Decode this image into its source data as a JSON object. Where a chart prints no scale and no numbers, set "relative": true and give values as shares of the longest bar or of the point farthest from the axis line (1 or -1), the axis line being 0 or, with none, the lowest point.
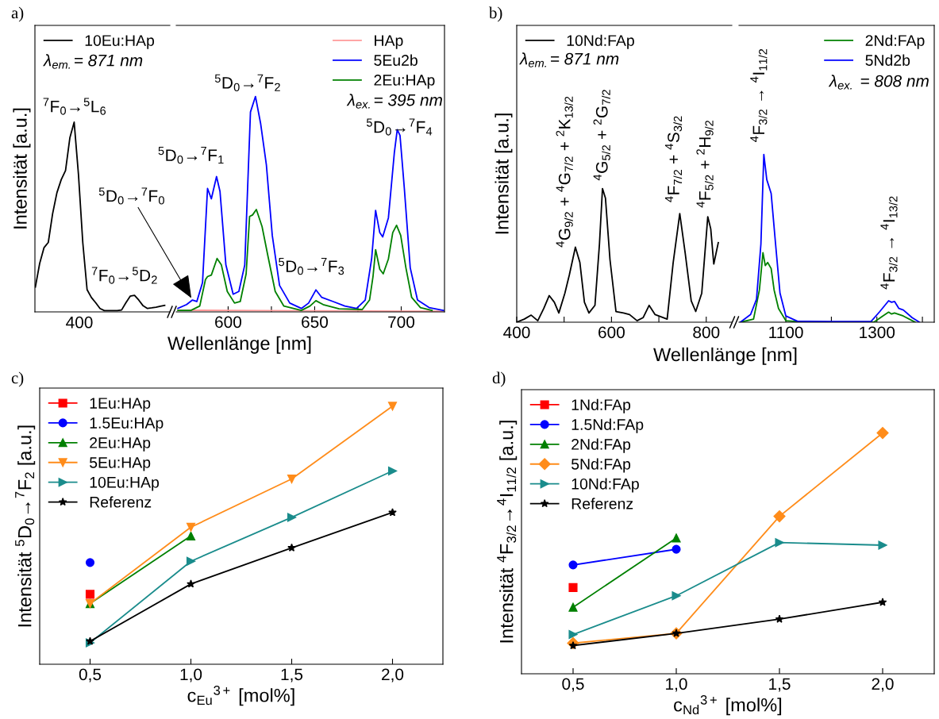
{
  "chart_data": [
    {
      "type": "line",
      "relative": true,
      "ylabel": "Intensität [a.u.]",
      "xlabel": "Wellenlänge [nm]",
      "legend": "top left",
      "grid": false,
      "categories": [
        null,
        null,
        null,
        null,
        null,
        null,
        null,
        null,
        null,
        null,
        null,
        null,
        null,
        null,
        null,
        null,
        null,
        null,
        null,
        null,
        null,
        null,
        null,
        null,
        null,
        null,
        null,
        null,
        null,
        null,
        null
      ],
      "annotations": [
        "a)",
        "λ$_{em.}$= 871 nm",
        "400",
        "$^{7}$F$_{0}$→$^{5}$L$_{6}$",
        "$^{7}$F$_{0}$→$^{5}$D$_{2}$"
      ],
      "series": [
        {
          "name": "10Eu:HAp",
          "color": "#000000",
          "values": [
            0.131,
            0.255,
            0.338,
            0.366,
            0.517,
            0.628,
            0.697,
            0.745,
            0.917,
            1.0,
            0.724,
            0.366,
            0.117,
            0.076,
            0.048,
            0.018,
            0.007,
            0.007,
            0.007,
            0.007,
            0.01,
            0.048,
            0.083,
            0.087,
            0.062,
            0.032,
            0.018,
            0.021,
            0.025,
            0.03,
            0.034
          ]
        }
      ]
    },
    {
      "type": "line",
      "relative": true,
      "xlim": [
        570,
        725
      ],
      "xticks": [
        600,
        {
          "value": 625,
          "label": null
        },
        650,
        {
          "value": 675,
          "label": null
        },
        700
      ],
      "legend": "top right",
      "grid": false,
      "annotations": [
        "λ$_{ex.}$= 395 nm",
        {
          "text": "$^{5}$D$_{0}$→$^{7}$F$_{0}$",
          "x": 579.4,
          "y": 0.055
        },
        {
          "text": "$^{5}$D$_{0}$→$^{7}$F$_{1}$",
          "x": 593.3,
          "y": 0.628
        },
        {
          "text": "$^{5}$D$_{0}$→$^{7}$F$_{2}$",
          "x": 615.8,
          "y": 1.0
        },
        {
          "text": "$^{5}$D$_{0}$→$^{7}$F$_{3}$",
          "x": 650.7,
          "y": 0.102
        },
        {
          "text": "$^{5}$D$_{0}$→$^{7}$F$_{4}$",
          "x": 697.7,
          "y": 0.846
        }
      ],
      "series": [
        {
          "name": "HAp",
          "color": "#ff9999",
          "x": [
            571,
            620,
            680,
            724
          ],
          "values": [
            0.008,
            0.006,
            0.004,
            0.003
          ]
        },
        {
          "name": "5Eu2b",
          "color": "#0000ff",
          "x": [
            571,
            576,
            579.4,
            581.9,
            585.2,
            588.1,
            590.3,
            593.3,
            595.3,
            598.7,
            602.9,
            606.2,
            609.6,
            612.9,
            615.8,
            618.8,
            622.1,
            625.5,
            629.7,
            635.6,
            642.3,
            646.5,
            650.7,
            654,
            660.7,
            667.4,
            674.2,
            679.2,
            682.9,
            685.2,
            687.6,
            689.3,
            692.6,
            696,
            697.7,
            699.3,
            701.8,
            705.2,
            709.4,
            716.1,
            724.5
          ],
          "values": [
            0.016,
            0.034,
            0.055,
            0.048,
            0.136,
            0.573,
            0.525,
            0.628,
            0.559,
            0.218,
            0.082,
            0.095,
            0.218,
            0.928,
            1.0,
            0.873,
            0.682,
            0.355,
            0.123,
            0.041,
            0.016,
            0.041,
            0.102,
            0.068,
            0.048,
            0.027,
            0.016,
            0.055,
            0.246,
            0.471,
            0.368,
            0.348,
            0.437,
            0.737,
            0.846,
            0.819,
            0.573,
            0.205,
            0.055,
            0.02,
            0.007
          ]
        },
        {
          "name": "2Eu:HAp",
          "color": "#008000",
          "x": [
            571,
            578.5,
            583.6,
            586.9,
            588.1,
            590.3,
            593.6,
            596.1,
            599.5,
            603.7,
            607,
            610.4,
            612.4,
            614.1,
            616.3,
            619.6,
            623,
            627.2,
            632.2,
            642.3,
            647.3,
            650.7,
            654.9,
            664.1,
            677.5,
            681.7,
            683.7,
            685.2,
            687.6,
            689.6,
            692.6,
            695.1,
            697.3,
            699.7,
            702.7,
            706,
            711.1,
            717.8
          ],
          "values": [
            0.007,
            0.007,
            0.027,
            0.15,
            0.164,
            0.171,
            0.248,
            0.218,
            0.095,
            0.041,
            0.048,
            0.177,
            0.443,
            0.45,
            0.475,
            0.396,
            0.259,
            0.095,
            0.027,
            0.007,
            0.027,
            0.052,
            0.034,
            0.014,
            0.011,
            0.055,
            0.164,
            0.289,
            0.198,
            0.177,
            0.246,
            0.368,
            0.402,
            0.355,
            0.205,
            0.068,
            0.02,
            0.007
          ]
        }
      ]
    },
    {
      "type": "line",
      "relative": true,
      "ylabel": "Intensität [a.u.]",
      "xlabel": "Wellenlänge [nm]",
      "xlim": [
        400,
        854
      ],
      "xticks": [
        400,
        {
          "value": 500,
          "label": null
        },
        600,
        {
          "value": 700,
          "label": null
        },
        800
      ],
      "legend": "top left",
      "grid": false,
      "annotations": [
        "b)",
        "λ$_{em.}$= 871 nm",
        "$^{4}$G$_{9/2}$ + $^{4}$G$_{7/2}$ + $^{2}$K$_{13/2}$",
        {
          "text": "$^{4}$G$_{5/2}$ + $^{2}$G$_{7/2}$",
          "x": 581,
          "y": 1.0
        },
        {
          "text": "$^{4}$F$_{7/2}$ + $^{4}$S$_{3/2}$",
          "x": 744.1,
          "y": 0.812
        },
        {
          "text": "$^{4}$F$_{5/2}$ + $^{2}$H$_{9/2}$",
          "x": 803.2,
          "y": 0.789
        }
      ],
      "series": [
        {
          "name": "10Nd:FAp",
          "color": "#000000",
          "x": [
            400,
            415.9,
            430.5,
            444.4,
            457.1,
            468.6,
            479.4,
            488.9,
            501.6,
            511.1,
            523.8,
            533.3,
            542.9,
            552.4,
            565.1,
            574.6,
            581,
            587.3,
            596.8,
            609.5,
            625.4,
            638.1,
            654,
            666.7,
            679.4,
            692.1,
            717.5,
            730.2,
            744.1,
            755.6,
            768.3,
            777.8,
            790.5,
            803.2,
            809.5,
            815.9,
            825.4
          ],
          "values": [
            0,
            0.023,
            0.053,
            0.011,
            0.103,
            0.199,
            0.149,
            0.069,
            0.217,
            0.355,
            0.561,
            0.446,
            0.149,
            0.069,
            0.126,
            0.584,
            1.0,
            0.927,
            0.469,
            0.08,
            0.069,
            0.057,
            0.011,
            0.034,
            0.126,
            0.057,
            0.023,
            0.446,
            0.812,
            0.515,
            0.16,
            0.08,
            0.217,
            0.789,
            0.698,
            0.435,
            0.595
          ]
        }
      ]
    },
    {
      "type": "line",
      "relative": true,
      "xlim": [
        997,
        1426
      ],
      "xticks": [
        1100,
        {
          "value": 1200,
          "label": null
        },
        1300,
        {
          "value": 1400,
          "label": null
        }
      ],
      "legend": "top right",
      "grid": false,
      "annotations": [
        "λ$_{ex.}$ = 808 nm",
        {
          "text": "$^{4}$F$_{3/2}$ → $^{4}$I$_{11/2}$",
          "x": 1051.6,
          "y": 1.0
        },
        {
          "text": "$^{4}$F$_{3/2}$ → $^{4}$I$_{13/2}$",
          "x": 1325.8,
          "y": 0.128
        }
      ],
      "series": [
        {
          "name": "2Nd:FAp",
          "color": "#008000",
          "x": [
            1000,
            1029,
            1041.9,
            1049.7,
            1054.8,
            1060,
            1067.7,
            1074.2,
            1083.9,
            1100,
            1138.7,
            1293.5,
            1312.9,
            1325.8,
            1332.3,
            1338.7,
            1358.1,
            1383.9
          ],
          "values": [
            0,
            0.018,
            0.192,
            0.415,
            0.338,
            0.356,
            0.32,
            0.192,
            0.082,
            0.009,
            0,
            0,
            0.037,
            0.06,
            0.049,
            0.055,
            0.037,
            0
          ]
        },
        {
          "name": "5Nd2b",
          "color": "#0000ff",
          "x": [
            1000,
            1022.6,
            1035.5,
            1045.2,
            1051.6,
            1058.1,
            1067.7,
            1077.4,
            1087.1,
            1100,
            1125.8,
            1203.2,
            1287.1,
            1306.5,
            1325.8,
            1332.3,
            1338.7,
            1348.4,
            1358.1,
            1377.4,
            1393.5
          ],
          "values": [
            0,
            0.046,
            0.137,
            0.466,
            1.0,
            0.85,
            0.768,
            0.466,
            0.174,
            0.037,
            0.005,
            0.004,
            0.004,
            0.064,
            0.128,
            0.119,
            0.124,
            0.082,
            0.073,
            0.027,
            0
          ]
        }
      ]
    },
    {
      "type": "line",
      "relative": true,
      "ylabel": "Intensität $^{5}$D$_{0}$→$^{7}$F$_{2}$ [a.u.]",
      "xlabel": "c$_{Eu}$$^{3+}$ [mol%]",
      "xlim": [
        0.25,
        2.25
      ],
      "xticks": [
        {
          "value": 0.5,
          "label": "0,5"
        },
        {
          "value": 1.0,
          "label": "1,0"
        },
        {
          "value": 1.5,
          "label": "1,5"
        },
        {
          "value": 2.0,
          "label": "2,0"
        }
      ],
      "legend": "top left",
      "grid": false,
      "x": [
        0.5,
        1.0,
        1.5,
        2.0
      ],
      "annotations": [
        "c)"
      ],
      "series": [
        {
          "name": "1Eu:HAp",
          "color": "#ff0000",
          "marker": "square",
          "values": [
            0.271,
            null,
            null,
            null
          ]
        },
        {
          "name": "1.5Eu:HAp",
          "color": "#0000ff",
          "marker": "circle",
          "values": [
            0.394,
            null,
            null,
            null
          ]
        },
        {
          "name": "2Eu:HAp",
          "color": "#008000",
          "marker": "triangle",
          "values": [
            0.235,
            0.497,
            null,
            null
          ]
        },
        {
          "name": "5Eu:HAp",
          "color": "#ff8c1a",
          "marker": "triangle_down",
          "values": [
            0.235,
            0.531,
            0.718,
            1.0
          ]
        },
        {
          "name": "10Eu:HAp",
          "color": "#1a8c8c",
          "marker": "triangle_right",
          "values": [
            0.083,
            0.399,
            0.569,
            0.749
          ]
        },
        {
          "name": "Referenz",
          "color": "#000000",
          "marker": "star",
          "values": [
            0.089,
            0.311,
            0.451,
            0.588
          ]
        }
      ]
    },
    {
      "type": "line",
      "relative": true,
      "ylabel": "Intensität $^{4}$F$_{3/2}$→$^{4}$I$_{11/2}$ [a.u.]",
      "xlabel": "c$_{Nd}$$^{3+}$ [mol%]",
      "xlim": [
        0.25,
        2.25
      ],
      "xticks": [
        {
          "value": 0.5,
          "label": "0,5"
        },
        {
          "value": 1.0,
          "label": "1,0"
        },
        {
          "value": 1.5,
          "label": "1,5"
        },
        {
          "value": 2.0,
          "label": "2,0"
        }
      ],
      "legend": "top left",
      "grid": false,
      "x": [
        0.5,
        1.0,
        1.5,
        2.0
      ],
      "annotations": [
        "d)"
      ],
      "series": [
        {
          "name": "1Nd:FAp",
          "color": "#ff0000",
          "marker": "square",
          "values": [
            0.358,
            null,
            null,
            null
          ]
        },
        {
          "name": "1.5Nd:FAp",
          "color": "#0000ff",
          "marker": "circle",
          "values": [
            0.452,
            0.517,
            null,
            null
          ]
        },
        {
          "name": "2Nd:FAp",
          "color": "#008000",
          "marker": "triangle",
          "values": [
            0.276,
            0.564,
            null,
            null
          ]
        },
        {
          "name": "5Nd:FAp",
          "color": "#ff8c1a",
          "marker": "diamond",
          "values": [
            0.127,
            0.168,
            0.654,
            1.0
          ]
        },
        {
          "name": "10Nd:FAp",
          "color": "#1a8c8c",
          "marker": "triangle_right",
          "values": [
            0.163,
            0.324,
            0.545,
            0.534
          ]
        },
        {
          "name": "Referenz",
          "color": "#000000",
          "marker": "star",
          "values": [
            0.117,
            0.168,
            0.227,
            0.297
          ]
        }
      ]
    }
  ]
}
